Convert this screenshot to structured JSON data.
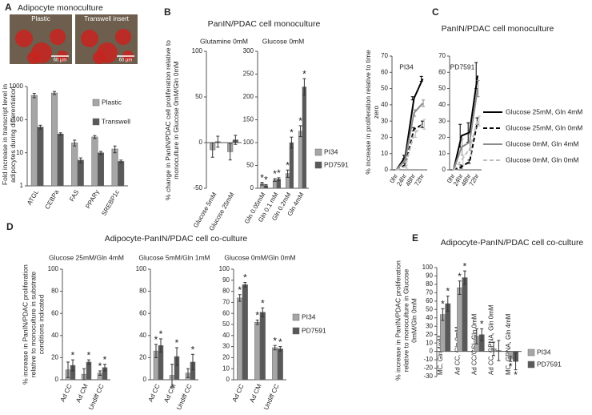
{
  "chart_data": [
    {
      "type": "bar",
      "panel": "A",
      "title": "Adipocyte monoculture",
      "images": [
        {
          "label": "Plastic",
          "scale": "60 µm"
        },
        {
          "label": "Transwell insert",
          "scale": "60 µm"
        }
      ],
      "ylabel": "Fold increase in transcript level in adipocytes during differentiation",
      "categories": [
        "ATGL",
        "CEBPa",
        "FAS",
        "PPARγ",
        "SREBP1c"
      ],
      "log_scale": true,
      "ylim": [
        1,
        1000
      ],
      "yticks": [
        1,
        10,
        100,
        1000
      ],
      "series": [
        {
          "name": "Plastic",
          "color": "#a6a6a6",
          "values": [
            540,
            640,
            20,
            30,
            13
          ],
          "errors": [
            80,
            70,
            4,
            3,
            3
          ]
        },
        {
          "name": "Transwell",
          "color": "#595959",
          "values": [
            60,
            37,
            6,
            10,
            5.5
          ],
          "errors": [
            8,
            3,
            1,
            1,
            0.5
          ]
        }
      ]
    },
    {
      "type": "bar",
      "panel": "B",
      "title": "PanIN/PDAC cell monoculture",
      "ylabel": "% change in PanIN/PDAC cell proliferation relative to monoculture in Glucose 0mM/Gln 0mM",
      "subtitle": "Glutamine 0mM",
      "categories": [
        "Glucose 5mM",
        "Glucose 25mM"
      ],
      "ylim": [
        -50,
        100
      ],
      "yticks": [
        -50,
        0,
        50,
        100
      ],
      "series": [
        {
          "color": "#a6a6a6",
          "values": [
            -8,
            -10
          ],
          "errors": [
            8,
            9
          ]
        },
        {
          "color": "#595959",
          "values": [
            1,
            3
          ],
          "errors": [
            6,
            5
          ]
        }
      ]
    },
    {
      "type": "bar",
      "subtitle": "Glucose 0mM",
      "categories": [
        "Gln 0.05mM",
        "Gln 0.1 mM",
        "Gln 0.2mM",
        "Gln 4mM"
      ],
      "ylim": [
        0,
        300
      ],
      "yticks": [
        0,
        50,
        100,
        150,
        200,
        250,
        300
      ],
      "series": [
        {
          "name": "PI34",
          "color": "#a6a6a6",
          "values": [
            10,
            18,
            32,
            125
          ],
          "errors": [
            3,
            3,
            8,
            12
          ],
          "significance": [
            "*",
            "*",
            "*",
            "*"
          ]
        },
        {
          "name": "PD7591",
          "color": "#595959",
          "values": [
            6,
            20,
            100,
            222
          ],
          "errors": [
            2,
            3,
            12,
            18
          ],
          "significance": [
            "*",
            "*",
            "*",
            "*"
          ]
        }
      ]
    },
    {
      "type": "line",
      "panel": "C",
      "title": "PanIN/PDAC cell monoculture",
      "ylabel": "% increase in proliferation relative to time zero",
      "subtitle": "PI34",
      "categories": [
        "0hr",
        "24hr",
        "48hr",
        "72hr"
      ],
      "ylim": [
        0,
        70
      ],
      "yticks": [
        0,
        10,
        20,
        30,
        40,
        50,
        60,
        70
      ],
      "series": [
        {
          "color": "#000000",
          "dashed": false,
          "values": [
            0,
            8,
            44,
            56
          ],
          "errors": [
            0,
            1,
            1,
            1.5
          ]
        },
        {
          "color": "#000000",
          "dashed": true,
          "values": [
            0,
            3,
            25,
            28
          ],
          "errors": [
            0,
            1,
            1,
            2
          ]
        },
        {
          "color": "#8c8c8c",
          "dashed": false,
          "values": [
            0,
            6,
            35,
            41
          ],
          "errors": [
            0,
            1,
            2,
            2
          ]
        },
        {
          "color": "#bfbfbf",
          "dashed": true,
          "values": [
            0,
            2,
            22,
            28
          ],
          "errors": [
            0,
            1,
            2,
            3
          ]
        }
      ]
    },
    {
      "type": "line",
      "subtitle": "PD7591",
      "categories": [
        "0hr",
        "24hr",
        "48hr",
        "72hr"
      ],
      "ylim": [
        0,
        70
      ],
      "yticks": [
        0,
        10,
        20,
        30,
        40,
        50,
        60,
        70
      ],
      "series": [
        {
          "name": "Glucose 25mM, Gln 4mM",
          "color": "#000000",
          "dashed": false,
          "values": [
            0,
            21,
            23,
            58
          ],
          "errors": [
            0,
            7,
            6,
            8
          ]
        },
        {
          "name": "Glucose 25mM, Gln 0mM",
          "color": "#000000",
          "dashed": true,
          "values": [
            0,
            2,
            5,
            30
          ],
          "errors": [
            0,
            1,
            1,
            2
          ]
        },
        {
          "name": "Glucose 0mM, Gln 4mM",
          "color": "#8c8c8c",
          "dashed": false,
          "values": [
            0,
            14,
            17,
            50
          ],
          "errors": [
            0,
            5,
            5,
            5
          ]
        },
        {
          "name": "Glucose 0mM, Gln 0mM",
          "color": "#bfbfbf",
          "dashed": true,
          "values": [
            0,
            6,
            13,
            30
          ],
          "errors": [
            0,
            3,
            4,
            3
          ]
        }
      ]
    },
    {
      "type": "bar",
      "panel": "D",
      "title": "Adipocyte-PanIN/PDAC cell co-culture",
      "ylabel": "% increase in PanIN/PDAC proliferation relative to monoculture in substrate conditions indicated",
      "subtitle": "Glucose 25mM/Gln 4mM",
      "categories": [
        "Ad CC",
        "Ad CM",
        "Undiff CC"
      ],
      "ylim": [
        0,
        100
      ],
      "yticks": [
        0,
        20,
        40,
        60,
        80,
        100
      ],
      "series": [
        {
          "color": "#a6a6a6",
          "values": [
            9,
            5,
            6
          ],
          "errors": [
            7,
            5,
            2
          ],
          "significance": [
            null,
            null,
            "*"
          ]
        },
        {
          "color": "#595959",
          "values": [
            13,
            16,
            11
          ],
          "errors": [
            5,
            2,
            3
          ],
          "significance": [
            "*",
            "*",
            "*"
          ]
        }
      ]
    },
    {
      "type": "bar",
      "subtitle": "Glucose 5mM/Gln 1mM",
      "categories": [
        "Ad CC",
        "Ad CM",
        "Undiff CC"
      ],
      "ylim": [
        0,
        100
      ],
      "yticks": [
        0,
        20,
        40,
        60,
        80,
        100
      ],
      "series": [
        {
          "color": "#a6a6a6",
          "values": [
            26,
            4,
            6
          ],
          "errors": [
            6,
            10,
            4
          ],
          "significance": [
            "*",
            null,
            null
          ]
        },
        {
          "color": "#595959",
          "values": [
            31,
            21,
            16
          ],
          "errors": [
            6,
            8,
            7
          ],
          "significance": [
            "*",
            "*",
            "*"
          ]
        }
      ]
    },
    {
      "type": "bar",
      "subtitle": "Glucose 0mM/Gln 0mM",
      "categories": [
        "Ad CC",
        "Ad CM",
        "Undiff CC"
      ],
      "ylim": [
        0,
        100
      ],
      "yticks": [
        0,
        10,
        20,
        30,
        40,
        50,
        60,
        70,
        80,
        90,
        100
      ],
      "series": [
        {
          "name": "PI34",
          "color": "#a6a6a6",
          "values": [
            74,
            52,
            29
          ],
          "errors": [
            3,
            2,
            2
          ],
          "significance": [
            "*",
            "*",
            "*"
          ]
        },
        {
          "name": "PD7591",
          "color": "#595959",
          "values": [
            86,
            61,
            28
          ],
          "errors": [
            2,
            4,
            2
          ],
          "significance": [
            "*",
            "*",
            "*"
          ]
        }
      ]
    },
    {
      "type": "bar",
      "panel": "E",
      "title": "Adipocyte-PanIN/PDAC cell co-culture",
      "ylabel": "% increase in PanIN/PDAC proliferation relative to monoculture in Glucose 0mM/Gln 0mM",
      "categories": [
        "MC, Gln 4mM",
        "Ad CC, Gln 0mM",
        "Ad CC/GSI, Gln 0mM",
        "Ad CC, GPNA, Gln 0mM",
        "MC, GPNA, Gln 4mM"
      ],
      "ylim": [
        -30,
        100
      ],
      "yticks": [
        -30,
        -20,
        -10,
        0,
        10,
        20,
        30,
        40,
        50,
        60,
        70,
        80,
        90,
        100
      ],
      "series": [
        {
          "name": "PI34",
          "color": "#a6a6a6",
          "values": [
            44,
            76,
            18,
            3,
            -9
          ],
          "errors": [
            7,
            8,
            9,
            8,
            3
          ],
          "significance": [
            "*",
            "*",
            null,
            null,
            "*"
          ]
        },
        {
          "name": "PD7591",
          "color": "#595959",
          "values": [
            57,
            88,
            20,
            1,
            -12
          ],
          "errors": [
            9,
            8,
            7,
            12,
            10
          ],
          "significance": [
            "*",
            "*",
            "*",
            null,
            "*"
          ]
        }
      ]
    }
  ]
}
